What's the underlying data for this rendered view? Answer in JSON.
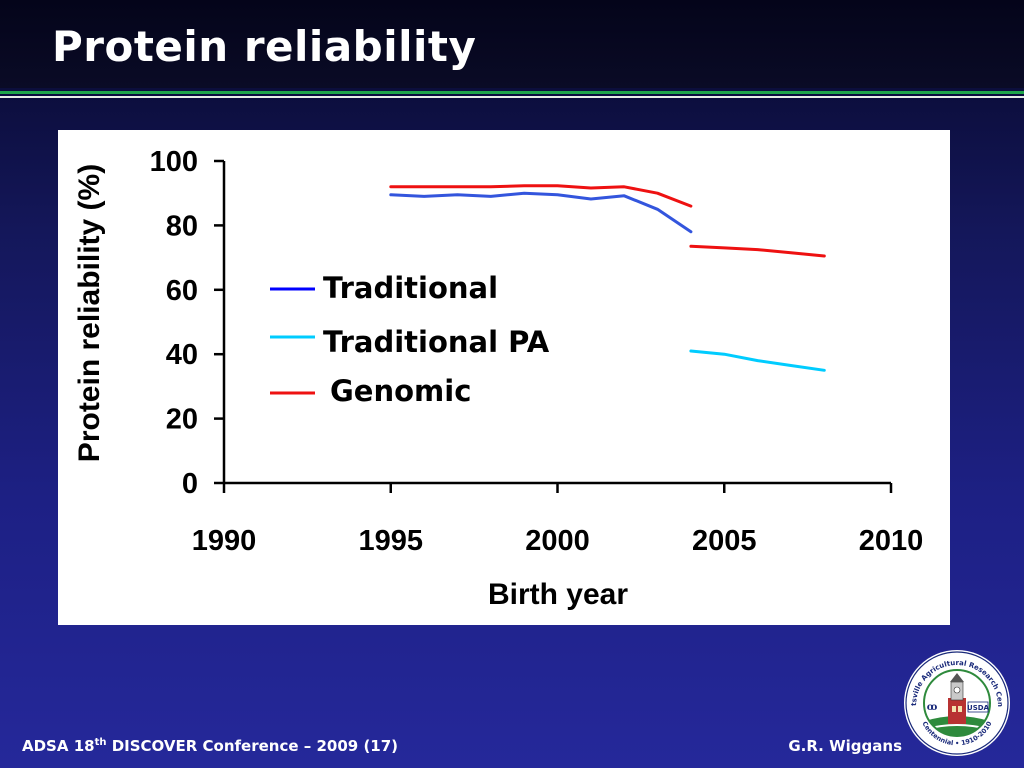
{
  "slide": {
    "title": "Protein reliability",
    "footer_left_prefix": "ADSA 18",
    "footer_left_sup": "th",
    "footer_left_suffix": " DISCOVER Conference – 2009 (17)",
    "footer_right": "G.R. Wiggans"
  },
  "colors": {
    "traditional": "#3355dd",
    "traditional_legend": "#0000ff",
    "traditional_pa": "#00ccff",
    "genomic": "#ee1111"
  },
  "logo": {
    "ring_top_text": "Beltsville Agricultural Research Center",
    "ring_bottom_text": "Centennial • 1910-2010",
    "badge_text": "USDA",
    "icon": "building-tower-icon"
  },
  "chart_data": {
    "type": "line",
    "title": "",
    "xlabel": "Birth year",
    "ylabel": "Protein reliability (%)",
    "xlim": [
      1990,
      2010
    ],
    "ylim": [
      0,
      100
    ],
    "xticks": [
      1990,
      1995,
      2000,
      2005,
      2010
    ],
    "yticks": [
      0,
      20,
      40,
      60,
      80,
      100
    ],
    "grid": false,
    "legend_position": "center-left",
    "series": [
      {
        "name": "Traditional",
        "color_key": "traditional",
        "x": [
          1995,
          1996,
          1997,
          1998,
          1999,
          2000,
          2001,
          2002,
          2003,
          2004
        ],
        "y": [
          89.5,
          89.0,
          89.5,
          89.0,
          90.0,
          89.5,
          88.2,
          89.2,
          85.0,
          78.0
        ]
      },
      {
        "name": "Traditional PA",
        "color_key": "traditional_pa",
        "x": [
          2004,
          2005,
          2006,
          2007,
          2008
        ],
        "y": [
          41.0,
          40.0,
          38.0,
          36.5,
          35.0
        ]
      },
      {
        "name": "Genomic",
        "color_key": "genomic",
        "x": [
          1995,
          1996,
          1997,
          1998,
          1999,
          2000,
          2001,
          2002,
          2003,
          2004
        ],
        "y": [
          92.0,
          92.0,
          92.0,
          92.0,
          92.3,
          92.3,
          91.6,
          92.0,
          90.0,
          86.0
        ]
      },
      {
        "name": "Genomic",
        "color_key": "genomic",
        "x": [
          2004,
          2005,
          2006,
          2007,
          2008
        ],
        "y": [
          73.5,
          73.0,
          72.5,
          71.5,
          70.5
        ]
      }
    ],
    "legend": [
      {
        "label": "Traditional",
        "color_key": "traditional_legend"
      },
      {
        "label": "Traditional PA",
        "color_key": "traditional_pa"
      },
      {
        "label": "Genomic",
        "color_key": "genomic"
      }
    ]
  }
}
